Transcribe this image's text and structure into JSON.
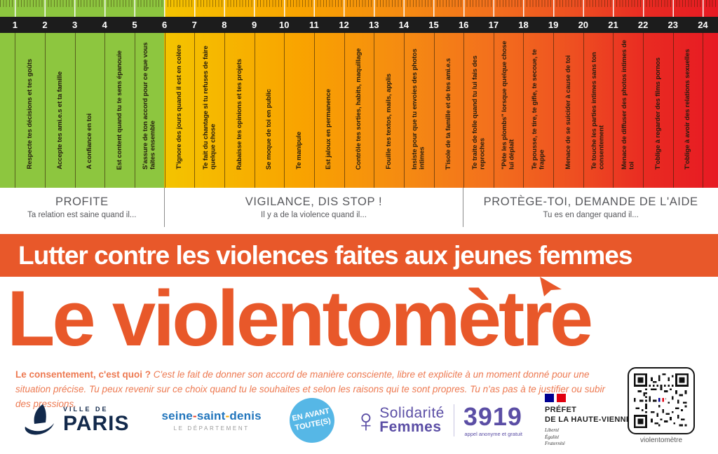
{
  "ruler": {
    "numbers": [
      "1",
      "2",
      "3",
      "4",
      "5",
      "6",
      "7",
      "8",
      "9",
      "10",
      "11",
      "12",
      "13",
      "14",
      "15",
      "16",
      "17",
      "18",
      "19",
      "20",
      "21",
      "22",
      "23",
      "24"
    ],
    "items": [
      "Respecte tes décisions et tes goûts",
      "Accepte tes ami.e.s et ta famille",
      "A confiance en toi",
      "Est content quand tu te sens épanouie",
      "S'assure de ton accord pour ce que vous faites ensemble",
      "T'ignore des jours quand il est en colère",
      "Te fait du chantage si tu refuses de faire quelque chose",
      "Rabaisse tes opinions et tes projets",
      "Se moque de toi en public",
      "Te manipule",
      "Est jaloux en permanence",
      "Contrôle tes sorties, habits, maquillage",
      "Fouille tes textos, mails, applis",
      "Insiste pour que tu envoies des photos intimes",
      "T'isole de ta famille et de tes ami.e.s",
      "Te traite de folle quand tu lui fais des reproches",
      "\"Pète les plombs\" lorsque quelque chose lui déplaît",
      "Te pousse, te tire, te gifle, te secoue, te frappe",
      "Menace de se suicider à cause de toi",
      "Te touche les parties intimes sans ton consentement",
      "Menace de diffuser des photos intimes de toi",
      "T'oblige à regarder des films pornos",
      "T'oblige à avoir des relations sexuelles"
    ],
    "colors": {
      "green": "#8dc63f",
      "yellow": "#f4c400",
      "orange": "#f58a12",
      "red": "#e71a23",
      "band": "#1c1c1c"
    }
  },
  "zones": [
    {
      "title": "PROFITE",
      "subtitle": "Ta relation est saine quand il..."
    },
    {
      "title": "VIGILANCE, DIS STOP !",
      "subtitle": "Il y a de la violence quand il..."
    },
    {
      "title": "PROTÈGE-TOI, DEMANDE DE L'AIDE",
      "subtitle": "Tu es en danger quand il..."
    }
  ],
  "banner": {
    "text": "Lutter contre les violences faites aux jeunes femmes",
    "color": "#e8582a"
  },
  "title": {
    "text": "Le violentomètre",
    "color": "#e8582a"
  },
  "consent": {
    "lead": "Le consentement, c'est quoi ?",
    "body": "C'est le fait de donner son accord de manière consciente, libre et explicite à un moment donné pour une situation précise. Tu peux revenir sur ce choix quand tu le souhaites et selon les raisons qui te sont propres. Tu n'as pas à te justifier ou subir des pressions."
  },
  "logos": {
    "paris": {
      "top": "VILLE DE",
      "name": "PARIS"
    },
    "ssd": {
      "part1": "seine",
      "part2": "saint",
      "part3": "denis",
      "sep": "-",
      "sub": "LE DÉPARTEMENT"
    },
    "enavant": {
      "line1": "EN AVANT",
      "line2": "TOUTE(S)"
    },
    "solidarite": {
      "symbol": "♀",
      "line1": "Solidarité",
      "line2": "Femmes"
    },
    "hotline": {
      "number": "3919",
      "sub": "appel anonyme et gratuit"
    },
    "prefet": {
      "line1": "PRÉFET",
      "line2": "DE LA HAUTE-VIENNE",
      "motto1": "Liberté",
      "motto2": "Égalité",
      "motto3": "Fraternité"
    },
    "qr_caption": "violentomètre"
  }
}
